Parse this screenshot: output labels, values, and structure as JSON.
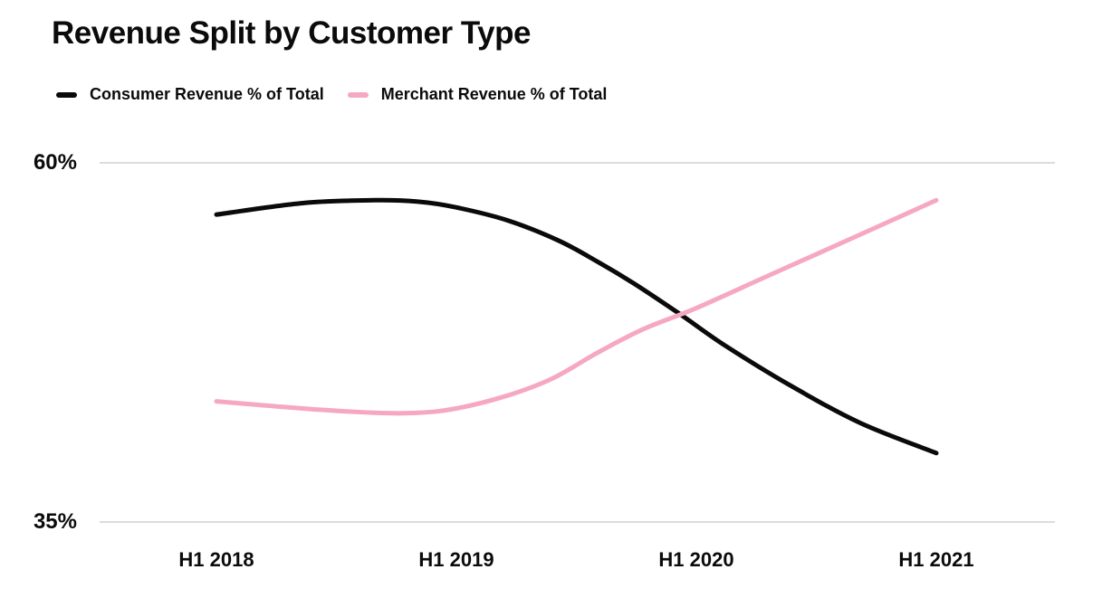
{
  "chart_data": {
    "type": "line",
    "title": "Revenue Split by Customer Type",
    "categories": [
      "H1 2018",
      "H1 2019",
      "H1 2020",
      "H1 2021"
    ],
    "y_tick_labels": [
      "60%",
      "35%"
    ],
    "ylim": [
      35,
      60
    ],
    "xlabel": "",
    "ylabel": "",
    "grid": "horizontal-only",
    "legend_position": "top-left",
    "gridline_color": "#dcdcdc",
    "background_color": "#ffffff",
    "series": [
      {
        "name": "Consumer Revenue % of Total",
        "color": "#0a0a0a",
        "values": [
          56.5,
          57,
          49,
          40
        ],
        "curve_samples": [
          [
            0,
            56.4
          ],
          [
            0.12,
            57.2
          ],
          [
            0.22,
            57.4
          ],
          [
            0.28,
            57.3
          ],
          [
            0.333,
            56.9
          ],
          [
            0.404,
            56.0
          ],
          [
            0.475,
            54.6
          ],
          [
            0.53,
            53.1
          ],
          [
            0.58,
            51.6
          ],
          [
            0.643,
            49.5
          ],
          [
            0.706,
            47.3
          ],
          [
            0.794,
            44.6
          ],
          [
            0.894,
            41.9
          ],
          [
            1,
            39.8
          ]
        ]
      },
      {
        "name": "Merchant Revenue % of Total",
        "color": "#F6A7C3",
        "values": [
          43.5,
          43,
          50,
          57.5
        ],
        "curve_samples": [
          [
            0,
            43.4
          ],
          [
            0.12,
            42.9
          ],
          [
            0.22,
            42.6
          ],
          [
            0.28,
            42.6
          ],
          [
            0.333,
            42.9
          ],
          [
            0.404,
            43.8
          ],
          [
            0.467,
            45.0
          ],
          [
            0.53,
            46.8
          ],
          [
            0.592,
            48.4
          ],
          [
            0.667,
            49.9
          ],
          [
            0.769,
            52.2
          ],
          [
            0.894,
            55.0
          ],
          [
            1,
            57.4
          ]
        ]
      }
    ]
  }
}
